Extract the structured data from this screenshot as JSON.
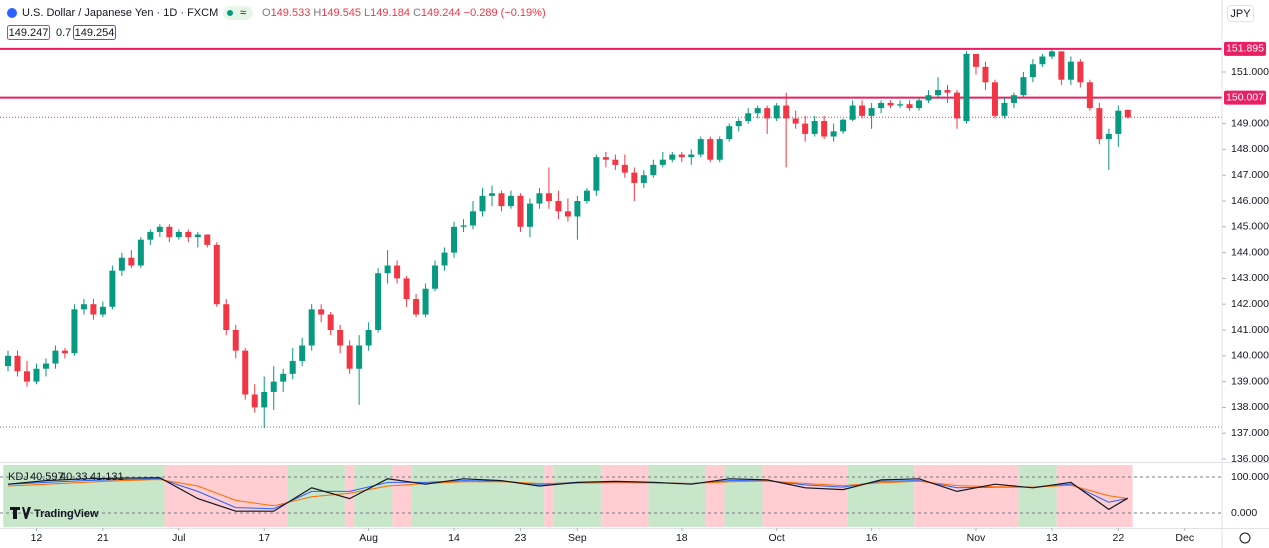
{
  "header": {
    "title": "U.S. Dollar / Japanese Yen · 1D · FXCM",
    "badge": "≈",
    "ohlc": [
      {
        "label": "O",
        "value": 149.533
      },
      {
        "label": "H",
        "value": 149.545
      },
      {
        "label": "L",
        "value": 149.184
      },
      {
        "label": "C",
        "value": 149.244
      }
    ],
    "change": "−0.289 (−0.19%)",
    "bid": "149.247",
    "spread": "0.7",
    "ask": "149.254",
    "currency": "JPY"
  },
  "chart_data": {
    "type": "candlestick",
    "up_color": "#089981",
    "down_color": "#f23645",
    "ylim": [
      135.884,
      152.705
    ],
    "yticks": [
      {
        "value": 136,
        "label": "136.000"
      },
      {
        "value": 137,
        "label": "137.000"
      },
      {
        "value": 138,
        "label": "138.000"
      },
      {
        "value": 139,
        "label": "139.000"
      },
      {
        "value": 140,
        "label": "140.000"
      },
      {
        "value": 141,
        "label": "141.000"
      },
      {
        "value": 142,
        "label": "142.000"
      },
      {
        "value": 143,
        "label": "143.000"
      },
      {
        "value": 144,
        "label": "144.000"
      },
      {
        "value": 145,
        "label": "145.000"
      },
      {
        "value": 146,
        "label": "146.000"
      },
      {
        "value": 147,
        "label": "147.000"
      },
      {
        "value": 148,
        "label": "148.000"
      },
      {
        "value": 149,
        "label": "149.000"
      },
      {
        "value": 151,
        "label": "151.000"
      }
    ],
    "levels": [
      {
        "value": 151.895,
        "label": "151.895"
      },
      {
        "value": 150.007,
        "label": "150.007"
      }
    ],
    "level_color": "#e91e63",
    "dotted_line": 137.24,
    "xticks": [
      {
        "value": 3,
        "label": "12"
      },
      {
        "value": 10,
        "label": "21"
      },
      {
        "value": 18,
        "label": "Jul"
      },
      {
        "value": 27,
        "label": "17"
      },
      {
        "value": 38,
        "label": "Aug"
      },
      {
        "value": 47,
        "label": "14"
      },
      {
        "value": 54,
        "label": "23"
      },
      {
        "value": 60,
        "label": "Sep"
      },
      {
        "value": 71,
        "label": "18"
      },
      {
        "value": 81,
        "label": "Oct"
      },
      {
        "value": 91,
        "label": "16"
      },
      {
        "value": 102,
        "label": "Nov"
      },
      {
        "value": 110,
        "label": "13"
      },
      {
        "value": 117,
        "label": "22"
      },
      {
        "value": 124,
        "label": "Dec"
      }
    ],
    "candles": [
      [
        139.6,
        140.2,
        139.4,
        140.0
      ],
      [
        140.0,
        140.2,
        139.2,
        139.4
      ],
      [
        139.4,
        139.8,
        138.8,
        139.0
      ],
      [
        139.0,
        139.7,
        138.9,
        139.5
      ],
      [
        139.5,
        139.9,
        139.2,
        139.7
      ],
      [
        139.7,
        140.4,
        139.5,
        140.2
      ],
      [
        140.2,
        140.3,
        139.9,
        140.1
      ],
      [
        140.1,
        142.0,
        140.0,
        141.8
      ],
      [
        141.8,
        142.2,
        141.6,
        142.0
      ],
      [
        142.0,
        142.2,
        141.4,
        141.6
      ],
      [
        141.6,
        142.1,
        141.5,
        141.9
      ],
      [
        141.9,
        143.5,
        141.8,
        143.3
      ],
      [
        143.3,
        144.0,
        143.1,
        143.8
      ],
      [
        143.8,
        144.1,
        143.4,
        143.5
      ],
      [
        143.5,
        144.6,
        143.4,
        144.5
      ],
      [
        144.5,
        144.9,
        144.3,
        144.8
      ],
      [
        144.8,
        145.1,
        144.6,
        145.0
      ],
      [
        145.0,
        145.1,
        144.4,
        144.6
      ],
      [
        144.6,
        144.9,
        144.5,
        144.8
      ],
      [
        144.8,
        144.9,
        144.4,
        144.6
      ],
      [
        144.6,
        144.8,
        144.2,
        144.7
      ],
      [
        144.7,
        144.7,
        144.2,
        144.3
      ],
      [
        144.3,
        144.4,
        141.9,
        142.0
      ],
      [
        142.0,
        142.2,
        140.8,
        141.0
      ],
      [
        141.0,
        141.2,
        139.9,
        140.2
      ],
      [
        140.2,
        140.3,
        138.3,
        138.5
      ],
      [
        138.5,
        138.9,
        137.8,
        138.0
      ],
      [
        138.0,
        139.2,
        137.2,
        138.6
      ],
      [
        138.6,
        139.6,
        137.9,
        139.0
      ],
      [
        139.0,
        139.5,
        138.6,
        139.3
      ],
      [
        139.3,
        140.3,
        139.1,
        139.8
      ],
      [
        139.8,
        140.7,
        139.6,
        140.4
      ],
      [
        140.4,
        142.0,
        140.2,
        141.8
      ],
      [
        141.8,
        142.0,
        141.3,
        141.6
      ],
      [
        141.6,
        141.7,
        140.8,
        141.0
      ],
      [
        141.0,
        141.2,
        140.1,
        140.4
      ],
      [
        140.4,
        140.6,
        139.3,
        139.5
      ],
      [
        139.5,
        140.8,
        138.1,
        140.4
      ],
      [
        140.4,
        141.3,
        140.2,
        141.0
      ],
      [
        141.0,
        143.4,
        140.9,
        143.2
      ],
      [
        143.2,
        144.1,
        142.8,
        143.5
      ],
      [
        143.5,
        143.7,
        142.8,
        143.0
      ],
      [
        143.0,
        143.1,
        141.9,
        142.2
      ],
      [
        142.2,
        142.4,
        141.5,
        141.6
      ],
      [
        141.6,
        142.8,
        141.5,
        142.6
      ],
      [
        142.6,
        143.7,
        142.5,
        143.5
      ],
      [
        143.5,
        144.2,
        143.3,
        144.0
      ],
      [
        144.0,
        145.2,
        143.8,
        145.0
      ],
      [
        145.0,
        145.3,
        144.8,
        145.05
      ],
      [
        145.05,
        146.0,
        144.9,
        145.6
      ],
      [
        145.6,
        146.5,
        145.4,
        146.2
      ],
      [
        146.2,
        146.6,
        145.8,
        146.3
      ],
      [
        146.3,
        146.4,
        145.6,
        145.8
      ],
      [
        145.8,
        146.4,
        145.7,
        146.2
      ],
      [
        146.2,
        146.3,
        144.8,
        145.0
      ],
      [
        145.0,
        146.1,
        144.6,
        145.9
      ],
      [
        145.9,
        146.5,
        145.7,
        146.3
      ],
      [
        146.3,
        147.3,
        145.7,
        146.0
      ],
      [
        146.0,
        146.4,
        145.3,
        145.6
      ],
      [
        145.6,
        146.1,
        145.2,
        145.4
      ],
      [
        145.4,
        146.2,
        144.5,
        146.0
      ],
      [
        146.0,
        146.5,
        145.9,
        146.4
      ],
      [
        146.4,
        147.8,
        146.2,
        147.7
      ],
      [
        147.7,
        147.9,
        147.3,
        147.6
      ],
      [
        147.6,
        147.8,
        147.2,
        147.4
      ],
      [
        147.4,
        147.8,
        146.9,
        147.1
      ],
      [
        147.1,
        147.3,
        146.0,
        146.7
      ],
      [
        146.7,
        147.2,
        146.5,
        147.0
      ],
      [
        147.0,
        147.6,
        146.9,
        147.4
      ],
      [
        147.4,
        147.9,
        147.3,
        147.6
      ],
      [
        147.6,
        147.9,
        147.5,
        147.8
      ],
      [
        147.8,
        147.9,
        147.5,
        147.7
      ],
      [
        147.7,
        148.0,
        147.4,
        147.8
      ],
      [
        147.8,
        148.5,
        147.7,
        148.4
      ],
      [
        148.4,
        148.5,
        147.5,
        147.6
      ],
      [
        147.6,
        148.5,
        147.5,
        148.4
      ],
      [
        148.4,
        149.0,
        148.3,
        148.9
      ],
      [
        148.9,
        149.2,
        148.7,
        149.1
      ],
      [
        149.1,
        149.6,
        149.0,
        149.4
      ],
      [
        149.4,
        149.7,
        149.2,
        149.6
      ],
      [
        149.6,
        149.7,
        148.6,
        149.2
      ],
      [
        149.2,
        149.8,
        149.1,
        149.7
      ],
      [
        149.7,
        150.2,
        147.3,
        149.2
      ],
      [
        149.2,
        149.5,
        148.8,
        149.0
      ],
      [
        149.0,
        149.3,
        148.3,
        148.6
      ],
      [
        148.6,
        149.3,
        148.5,
        149.1
      ],
      [
        149.1,
        149.3,
        148.4,
        148.5
      ],
      [
        148.5,
        149.0,
        148.3,
        148.7
      ],
      [
        148.7,
        149.2,
        148.6,
        149.15
      ],
      [
        149.15,
        149.9,
        149.1,
        149.7
      ],
      [
        149.7,
        149.9,
        149.2,
        149.3
      ],
      [
        149.3,
        149.8,
        148.8,
        149.6
      ],
      [
        149.6,
        149.9,
        149.4,
        149.8
      ],
      [
        149.8,
        149.9,
        149.6,
        149.7
      ],
      [
        149.7,
        149.9,
        149.6,
        149.75
      ],
      [
        149.75,
        149.9,
        149.5,
        149.6
      ],
      [
        149.6,
        150.0,
        149.5,
        149.9
      ],
      [
        149.9,
        150.3,
        149.8,
        150.1
      ],
      [
        150.1,
        150.8,
        150.0,
        150.3
      ],
      [
        150.3,
        150.5,
        149.8,
        150.2
      ],
      [
        150.2,
        150.3,
        148.8,
        149.2
      ],
      [
        149.1,
        151.8,
        149.0,
        151.7
      ],
      [
        151.7,
        151.7,
        150.9,
        151.2
      ],
      [
        151.2,
        151.4,
        150.3,
        150.6
      ],
      [
        150.6,
        150.7,
        149.2,
        149.3
      ],
      [
        149.3,
        150.0,
        149.2,
        149.8
      ],
      [
        149.8,
        150.2,
        149.6,
        150.1
      ],
      [
        150.1,
        151.0,
        150.0,
        150.8
      ],
      [
        150.8,
        151.5,
        150.6,
        151.3
      ],
      [
        151.3,
        151.7,
        151.2,
        151.6
      ],
      [
        151.6,
        151.9,
        151.5,
        151.8
      ],
      [
        151.8,
        151.8,
        150.5,
        150.7
      ],
      [
        150.7,
        151.6,
        150.5,
        151.4
      ],
      [
        151.4,
        151.5,
        150.4,
        150.6
      ],
      [
        150.6,
        150.7,
        149.5,
        149.6
      ],
      [
        149.6,
        149.8,
        148.2,
        148.4
      ],
      [
        148.4,
        148.8,
        147.2,
        148.6
      ],
      [
        148.6,
        149.7,
        148.1,
        149.5
      ],
      [
        149.533,
        149.545,
        149.184,
        149.244
      ]
    ],
    "kdj": {
      "label": "KDJ",
      "ylim": [
        -38.9,
        133.3
      ],
      "yticks": [
        {
          "value": 100,
          "label": "100.000"
        },
        {
          "value": 0,
          "label": "0.000"
        }
      ],
      "up_band": "#c8e6c9",
      "down_band": "#ffcdd2",
      "bands": [
        [
          0,
          16,
          "up"
        ],
        [
          17,
          29,
          "down"
        ],
        [
          30,
          35,
          "up"
        ],
        [
          36,
          36,
          "down"
        ],
        [
          37,
          40,
          "up"
        ],
        [
          41,
          42,
          "down"
        ],
        [
          43,
          56,
          "up"
        ],
        [
          57,
          57,
          "down"
        ],
        [
          58,
          62,
          "up"
        ],
        [
          63,
          67,
          "down"
        ],
        [
          68,
          73,
          "up"
        ],
        [
          74,
          75,
          "down"
        ],
        [
          76,
          79,
          "up"
        ],
        [
          80,
          88,
          "down"
        ],
        [
          89,
          95,
          "up"
        ],
        [
          96,
          106,
          "down"
        ],
        [
          107,
          110,
          "up"
        ],
        [
          111,
          118,
          "down"
        ]
      ],
      "x": [
        0,
        4,
        8,
        12,
        16,
        20,
        24,
        28,
        32,
        36,
        40,
        44,
        48,
        52,
        56,
        60,
        64,
        68,
        72,
        76,
        80,
        84,
        88,
        92,
        96,
        100,
        104,
        108,
        112,
        116,
        118
      ],
      "lines": [
        {
          "color": "#2962ff",
          "values": [
            80,
            85,
            90,
            93,
            95,
            60,
            15,
            12,
            60,
            60,
            85,
            85,
            90,
            88,
            80,
            85,
            85,
            84,
            82,
            90,
            90,
            78,
            72,
            88,
            90,
            70,
            72,
            72,
            80,
            30,
            40.597
          ]
        },
        {
          "color": "#ff6d00",
          "values": [
            75,
            80,
            85,
            90,
            93,
            75,
            35,
            20,
            45,
            55,
            75,
            82,
            87,
            87,
            82,
            83,
            84,
            84,
            82,
            87,
            89,
            82,
            76,
            84,
            88,
            76,
            73,
            72,
            77,
            48,
            40.33
          ]
        },
        {
          "color": "#131722",
          "values": [
            80,
            90,
            95,
            97,
            98,
            40,
            5,
            5,
            70,
            40,
            95,
            80,
            95,
            90,
            75,
            85,
            88,
            85,
            80,
            95,
            92,
            70,
            65,
            92,
            95,
            60,
            80,
            70,
            85,
            10,
            41.131
          ]
        }
      ]
    }
  },
  "footer": {
    "logo": "TradingView"
  }
}
